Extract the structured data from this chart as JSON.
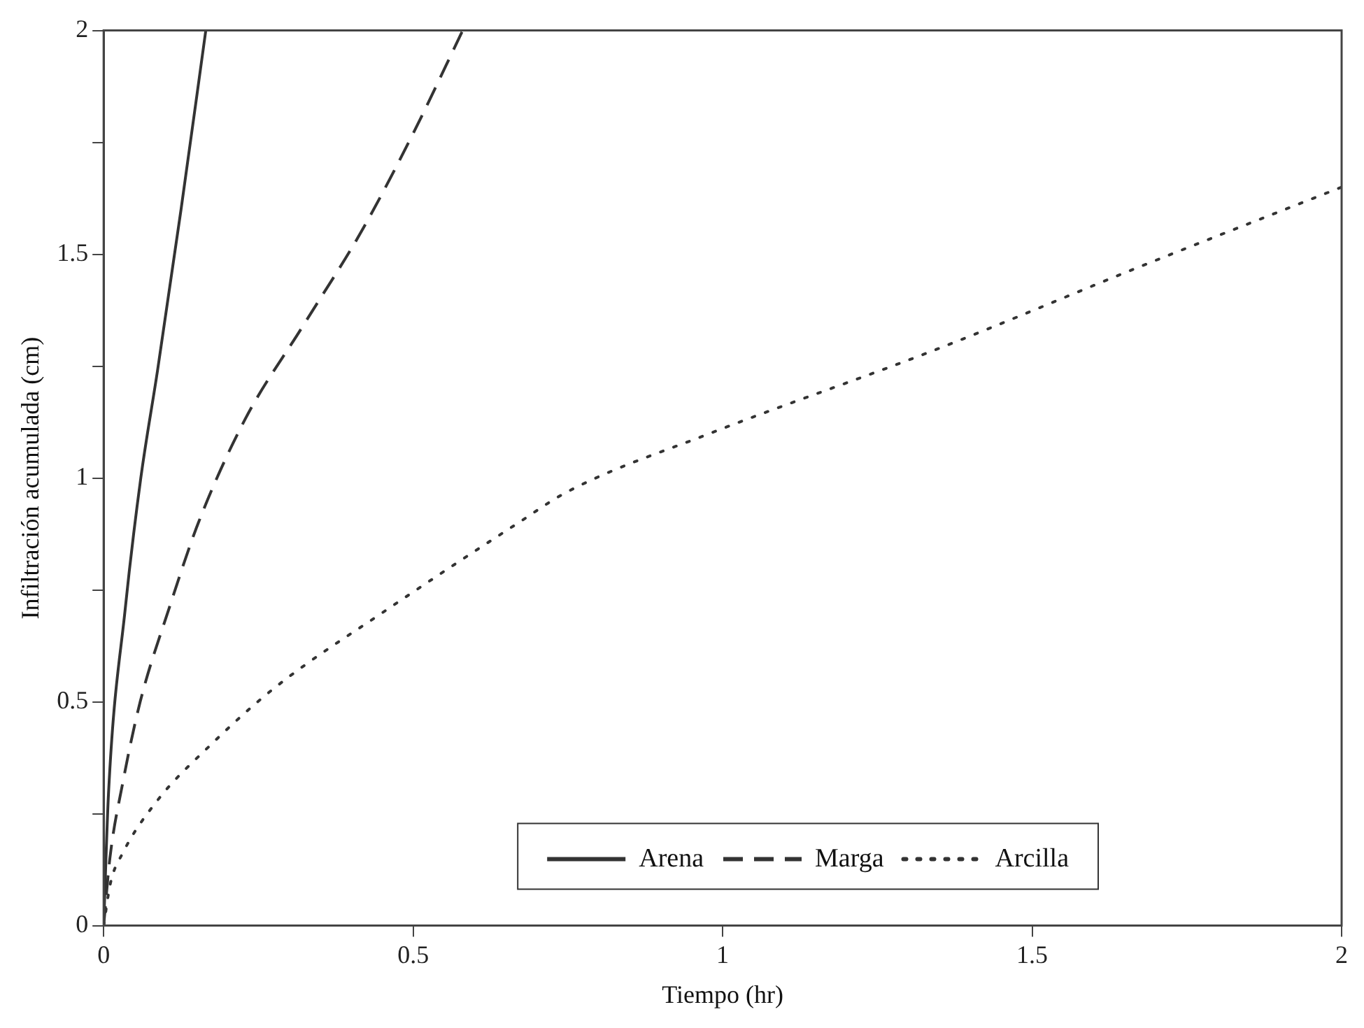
{
  "chart_data": {
    "type": "line",
    "xlabel": "Tiempo (hr)",
    "ylabel": "Infiltración acumulada (cm)",
    "xlim": [
      0,
      2
    ],
    "xticks": [
      0,
      0.5,
      1,
      1.5,
      2
    ],
    "ylim": [
      0,
      2
    ],
    "yticks": [
      0,
      {
        "value": 0.25,
        "label": null
      },
      0.5,
      {
        "value": 0.75,
        "label": null
      },
      1,
      {
        "value": 1.25,
        "label": null
      },
      1.5,
      {
        "value": 1.75,
        "label": null
      },
      2
    ],
    "grid": false,
    "legend": "bottom",
    "marker": "none",
    "series": [
      {
        "name": "Arena",
        "color": "#333333",
        "line_style": "solid",
        "x": [
          0,
          0.008,
          0.035,
          0.06,
          0.087,
          0.125,
          0.165
        ],
        "values": [
          0,
          0.3,
          0.71,
          1.0,
          1.24,
          1.6,
          2
        ]
      },
      {
        "name": "Marga",
        "color": "#333333",
        "line_style": "dashed",
        "x": [
          0,
          0.01,
          0.031,
          0.059,
          0.106,
          0.153,
          0.228,
          0.322,
          0.416,
          0.5,
          0.58
        ],
        "values": [
          0,
          0.15,
          0.32,
          0.5,
          0.71,
          0.9,
          1.13,
          1.34,
          1.55,
          1.77,
          2
        ]
      },
      {
        "name": "Arcilla",
        "color": "#333333",
        "line_style": "dotted",
        "x": [
          0,
          0.011,
          0.03,
          0.087,
          0.17,
          0.275,
          0.462,
          0.67,
          0.75,
          0.98,
          1.35,
          1.67,
          2
        ],
        "values": [
          0,
          0.095,
          0.16,
          0.28,
          0.4,
          0.53,
          0.71,
          0.9,
          0.97,
          1.1,
          1.29,
          1.47,
          1.65
        ]
      }
    ]
  }
}
